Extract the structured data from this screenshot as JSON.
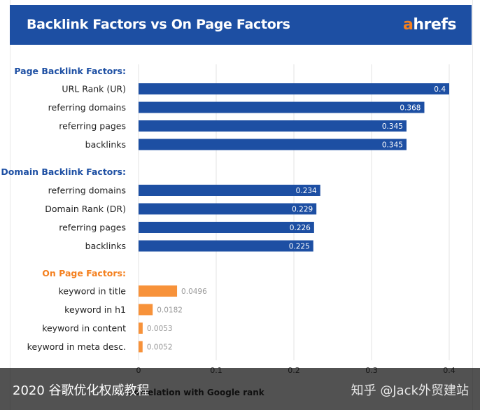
{
  "header": {
    "title": "Backlink Factors vs On Page Factors",
    "logo_accent": "a",
    "logo_rest": "hrefs"
  },
  "colors": {
    "header_bg": "#1d4fa3",
    "backlink_bar": "#1d4fa3",
    "onpage_bar": "#f7923a",
    "backlink_heading": "#1d4fa3",
    "onpage_heading": "#f4801f"
  },
  "chart_data": {
    "type": "bar",
    "orientation": "horizontal",
    "xlabel": "Correlation with Google rank",
    "xlim": [
      0,
      0.4
    ],
    "xticks": [
      "0",
      "0.1",
      "0.2",
      "0.3",
      "0.4"
    ],
    "grid": true,
    "groups": [
      {
        "name": "Page Backlink Factors:",
        "color": "#1d4fa3",
        "categories": [
          "URL Rank (UR)",
          "referring domains",
          "referring pages",
          "backlinks"
        ],
        "values": [
          0.4,
          0.368,
          0.345,
          0.345
        ],
        "labels": [
          "0.4",
          "0.368",
          "0.345",
          "0.345"
        ]
      },
      {
        "name": "Domain Backlink Factors:",
        "color": "#1d4fa3",
        "categories": [
          "referring domains",
          "Domain Rank (DR)",
          "referring pages",
          "backlinks"
        ],
        "values": [
          0.234,
          0.229,
          0.226,
          0.225
        ],
        "labels": [
          "0.234",
          "0.229",
          "0.226",
          "0.225"
        ]
      },
      {
        "name": "On Page Factors:",
        "color": "#f7923a",
        "categories": [
          "keyword in title",
          "keyword in h1",
          "keyword in content",
          "keyword in meta desc."
        ],
        "values": [
          0.0496,
          0.0182,
          0.0053,
          0.0052
        ],
        "labels": [
          "0.0496",
          "0.0182",
          "0.0053",
          "0.0052"
        ]
      }
    ]
  },
  "overlay": {
    "left_text": "2020  谷歌优化权威教程",
    "right_text": "知乎 @Jack外贸建站"
  }
}
